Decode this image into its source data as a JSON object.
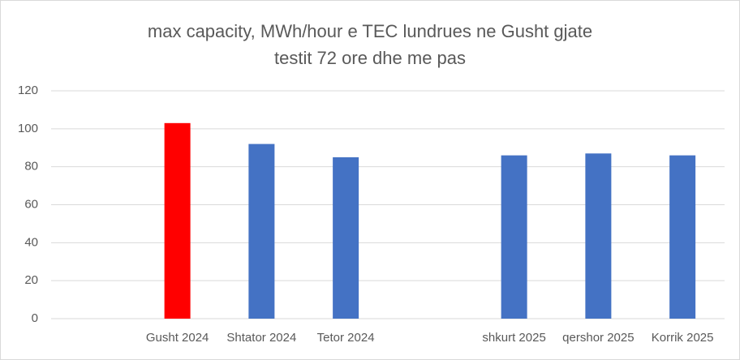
{
  "chart_data": {
    "type": "bar",
    "title": [
      "max capacity, MWh/hour  e TEC lundrues ne Gusht gjate",
      "testit 72 ore dhe  me pas"
    ],
    "categories": [
      null,
      "Gusht 2024",
      "Shtator 2024",
      "Tetor 2024",
      null,
      "shkurt 2025",
      "qershor 2025",
      "Korrik 2025"
    ],
    "values": [
      null,
      103,
      92,
      85,
      null,
      86,
      87,
      86
    ],
    "colors": [
      null,
      "#ff0000",
      "#4472c4",
      "#4472c4",
      null,
      "#4472c4",
      "#4472c4",
      "#4472c4"
    ],
    "ylim": [
      0,
      120
    ],
    "yticks": [
      0,
      20,
      40,
      60,
      80,
      100,
      120
    ],
    "grid": true
  }
}
